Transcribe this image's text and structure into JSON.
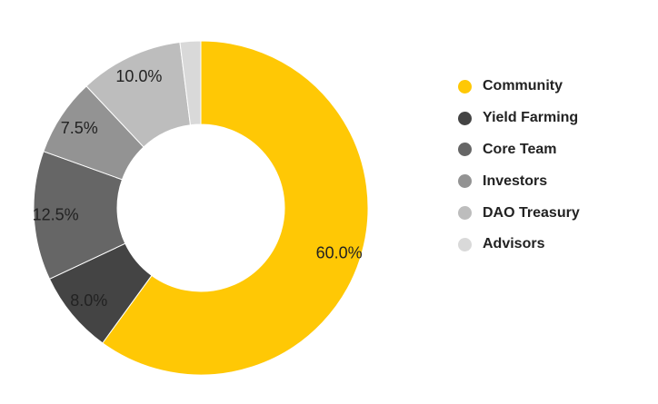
{
  "chart_data": {
    "type": "pie",
    "donut": true,
    "title": "",
    "categories": [
      "Community",
      "Yield Farming",
      "Core Team",
      "Investors",
      "DAO Treasury",
      "Advisors"
    ],
    "values": [
      60.0,
      8.0,
      12.5,
      7.5,
      10.0,
      2.0
    ],
    "colors": [
      "#FFC805",
      "#444444",
      "#666666",
      "#939393",
      "#BDBDBD",
      "#D9D9D9"
    ],
    "data_labels": [
      "60.0%",
      "8.0%",
      "12.5%",
      "7.5%",
      "10.0%",
      ""
    ],
    "legend_position": "right"
  }
}
